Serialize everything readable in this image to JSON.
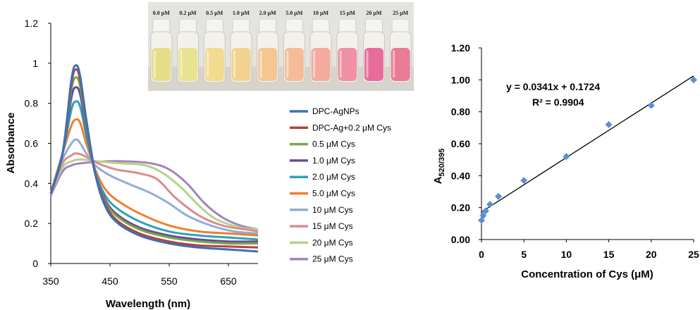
{
  "chart_data": [
    {
      "type": "line",
      "xlabel": "Wavelength (nm)",
      "ylabel": "Absorbance",
      "xlim": [
        350,
        700
      ],
      "ylim": [
        0,
        1.2
      ],
      "xticks": [
        "350",
        "450",
        "550",
        "650"
      ],
      "yticks": [
        "0",
        "0.2",
        "0.4",
        "0.6",
        "0.8",
        "1",
        "1.2"
      ],
      "legend_position": "right",
      "series": [
        {
          "name": "DPC-AgNPs",
          "color": "#3c6fb6",
          "points": [
            [
              350,
              0.35
            ],
            [
              370,
              0.55
            ],
            [
              385,
              0.92
            ],
            [
              393,
              0.99
            ],
            [
              400,
              0.93
            ],
            [
              410,
              0.72
            ],
            [
              425,
              0.45
            ],
            [
              440,
              0.3
            ],
            [
              460,
              0.21
            ],
            [
              500,
              0.14
            ],
            [
              550,
              0.1
            ],
            [
              600,
              0.08
            ],
            [
              650,
              0.07
            ],
            [
              700,
              0.06
            ]
          ]
        },
        {
          "name": "DPC-Ag+0.2 μM Cys",
          "color": "#b8403b",
          "points": [
            [
              350,
              0.35
            ],
            [
              370,
              0.55
            ],
            [
              385,
              0.9
            ],
            [
              393,
              0.97
            ],
            [
              400,
              0.91
            ],
            [
              410,
              0.71
            ],
            [
              425,
              0.45
            ],
            [
              440,
              0.31
            ],
            [
              460,
              0.22
            ],
            [
              500,
              0.15
            ],
            [
              550,
              0.11
            ],
            [
              600,
              0.09
            ],
            [
              650,
              0.085
            ],
            [
              700,
              0.08
            ]
          ]
        },
        {
          "name": "0.5 μM Cys",
          "color": "#79a64b",
          "points": [
            [
              350,
              0.35
            ],
            [
              370,
              0.55
            ],
            [
              385,
              0.87
            ],
            [
              393,
              0.93
            ],
            [
              400,
              0.88
            ],
            [
              410,
              0.69
            ],
            [
              425,
              0.45
            ],
            [
              440,
              0.32
            ],
            [
              460,
              0.24
            ],
            [
              500,
              0.17
            ],
            [
              550,
              0.13
            ],
            [
              600,
              0.11
            ],
            [
              650,
              0.1
            ],
            [
              700,
              0.1
            ]
          ]
        },
        {
          "name": "1.0 μM Cys",
          "color": "#6a4d93",
          "points": [
            [
              350,
              0.35
            ],
            [
              370,
              0.55
            ],
            [
              385,
              0.83
            ],
            [
              393,
              0.88
            ],
            [
              400,
              0.84
            ],
            [
              410,
              0.67
            ],
            [
              425,
              0.45
            ],
            [
              440,
              0.33
            ],
            [
              460,
              0.25
            ],
            [
              500,
              0.18
            ],
            [
              550,
              0.14
            ],
            [
              600,
              0.12
            ],
            [
              650,
              0.11
            ],
            [
              700,
              0.11
            ]
          ]
        },
        {
          "name": "2.0 μM Cys",
          "color": "#2ea2bb",
          "points": [
            [
              350,
              0.35
            ],
            [
              370,
              0.55
            ],
            [
              385,
              0.77
            ],
            [
              393,
              0.81
            ],
            [
              400,
              0.78
            ],
            [
              410,
              0.64
            ],
            [
              425,
              0.46
            ],
            [
              440,
              0.35
            ],
            [
              460,
              0.28
            ],
            [
              500,
              0.21
            ],
            [
              550,
              0.16
            ],
            [
              600,
              0.14
            ],
            [
              650,
              0.13
            ],
            [
              700,
              0.12
            ]
          ]
        },
        {
          "name": "5.0 μM Cys",
          "color": "#ef7f2b",
          "points": [
            [
              350,
              0.35
            ],
            [
              370,
              0.55
            ],
            [
              385,
              0.69
            ],
            [
              393,
              0.72
            ],
            [
              400,
              0.7
            ],
            [
              410,
              0.6
            ],
            [
              425,
              0.47
            ],
            [
              440,
              0.38
            ],
            [
              460,
              0.32
            ],
            [
              500,
              0.25
            ],
            [
              550,
              0.19
            ],
            [
              600,
              0.16
            ],
            [
              650,
              0.15
            ],
            [
              700,
              0.14
            ]
          ]
        },
        {
          "name": "10 μM Cys",
          "color": "#8eadd9",
          "points": [
            [
              350,
              0.35
            ],
            [
              370,
              0.52
            ],
            [
              385,
              0.6
            ],
            [
              393,
              0.62
            ],
            [
              400,
              0.6
            ],
            [
              410,
              0.55
            ],
            [
              425,
              0.49
            ],
            [
              450,
              0.44
            ],
            [
              480,
              0.4
            ],
            [
              520,
              0.35
            ],
            [
              550,
              0.3
            ],
            [
              580,
              0.24
            ],
            [
              620,
              0.19
            ],
            [
              660,
              0.16
            ],
            [
              700,
              0.15
            ]
          ]
        },
        {
          "name": "15 μM Cys",
          "color": "#dc8b8b",
          "points": [
            [
              350,
              0.35
            ],
            [
              370,
              0.5
            ],
            [
              385,
              0.54
            ],
            [
              393,
              0.55
            ],
            [
              405,
              0.54
            ],
            [
              430,
              0.5
            ],
            [
              460,
              0.47
            ],
            [
              500,
              0.45
            ],
            [
              530,
              0.42
            ],
            [
              560,
              0.33
            ],
            [
              600,
              0.24
            ],
            [
              640,
              0.19
            ],
            [
              680,
              0.17
            ],
            [
              700,
              0.16
            ]
          ]
        },
        {
          "name": "20 μM Cys",
          "color": "#b5d38a",
          "points": [
            [
              350,
              0.35
            ],
            [
              370,
              0.48
            ],
            [
              385,
              0.51
            ],
            [
              400,
              0.52
            ],
            [
              430,
              0.51
            ],
            [
              470,
              0.5
            ],
            [
              510,
              0.49
            ],
            [
              540,
              0.45
            ],
            [
              570,
              0.38
            ],
            [
              600,
              0.29
            ],
            [
              630,
              0.22
            ],
            [
              670,
              0.18
            ],
            [
              700,
              0.17
            ]
          ]
        },
        {
          "name": "25 μM Cys",
          "color": "#a283bf",
          "points": [
            [
              350,
              0.34
            ],
            [
              370,
              0.46
            ],
            [
              385,
              0.49
            ],
            [
              400,
              0.5
            ],
            [
              440,
              0.51
            ],
            [
              480,
              0.51
            ],
            [
              520,
              0.5
            ],
            [
              550,
              0.47
            ],
            [
              580,
              0.4
            ],
            [
              610,
              0.3
            ],
            [
              640,
              0.23
            ],
            [
              670,
              0.19
            ],
            [
              700,
              0.17
            ]
          ]
        }
      ]
    },
    {
      "type": "scatter",
      "xlabel": "Concentration of Cys (μM)",
      "ylabel_main": "A",
      "ylabel_sub": "520/395",
      "xlim": [
        0,
        25
      ],
      "ylim": [
        0,
        1.2
      ],
      "xticks": [
        "0",
        "5",
        "10",
        "15",
        "20",
        "25"
      ],
      "yticks": [
        "0.00",
        "0.20",
        "0.40",
        "0.60",
        "0.80",
        "1.00",
        "1.20"
      ],
      "marker_color": "#5b8fd0",
      "x": [
        0,
        0.2,
        0.5,
        1,
        2,
        5,
        10,
        15,
        20,
        25
      ],
      "y": [
        0.12,
        0.15,
        0.18,
        0.22,
        0.27,
        0.37,
        0.52,
        0.72,
        0.84,
        1.0
      ],
      "fit": {
        "slope": 0.0341,
        "intercept": 0.1724
      },
      "equation": "y = 0.0341x + 0.1724",
      "r2_label": "R² = 0.9904"
    }
  ],
  "inset": {
    "vial_labels": [
      "0.0 μM",
      "0.2 μM",
      "0.5 μM",
      "1.0 μM",
      "2.0 μM",
      "5.0 μM",
      "10 μM",
      "15 μM",
      "20 μM",
      "25 μM"
    ],
    "vial_colors": [
      "#e4dc84",
      "#e8e08a",
      "#efd98a",
      "#f1d08a",
      "#f2c48a",
      "#f3b994",
      "#f3a59a",
      "#ee8aa0",
      "#e76497",
      "#e8748f"
    ]
  }
}
